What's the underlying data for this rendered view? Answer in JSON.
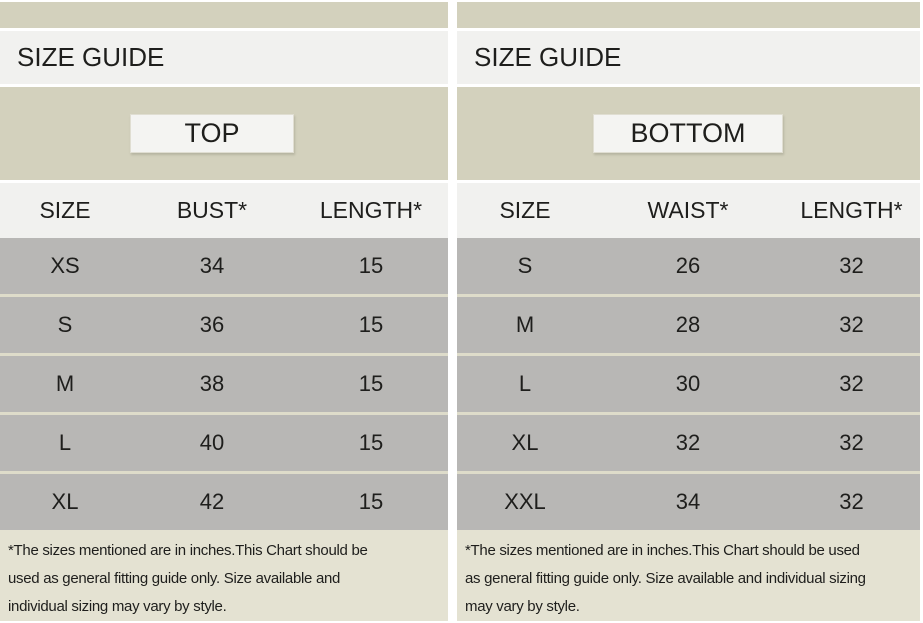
{
  "colors": {
    "accent_khaki": "#d3d1bd",
    "light_band": "#f1f1ef",
    "title_box_bg": "#f4f4f2",
    "data_row_gray": "#b8b7b5",
    "row_separator": "#dedcca",
    "footnote_bg": "#e4e2d2",
    "gap_white": "#ffffff",
    "text": "#1e1e1c"
  },
  "panels": [
    {
      "header_title": "SIZE GUIDE",
      "section_label": "TOP",
      "columns": [
        "SIZE",
        "BUST*",
        "LENGTH*"
      ],
      "rows": [
        [
          "XS",
          "34",
          "15"
        ],
        [
          "S",
          "36",
          "15"
        ],
        [
          "M",
          "38",
          "15"
        ],
        [
          "L",
          "40",
          "15"
        ],
        [
          "XL",
          "42",
          "15"
        ]
      ],
      "footnote_lines": [
        "*The sizes mentioned are in inches.This Chart should be",
        "used as general fitting guide only. Size available and",
        "individual sizing may vary by style."
      ]
    },
    {
      "header_title": "SIZE GUIDE",
      "section_label": "BOTTOM",
      "columns": [
        "SIZE",
        "WAIST*",
        "LENGTH*"
      ],
      "rows": [
        [
          "S",
          "26",
          "32"
        ],
        [
          "M",
          "28",
          "32"
        ],
        [
          "L",
          "30",
          "32"
        ],
        [
          "XL",
          "32",
          "32"
        ],
        [
          "XXL",
          "34",
          "32"
        ]
      ],
      "footnote_lines": [
        "*The sizes mentioned are in inches.This Chart should be used",
        "as general fitting guide only. Size available and individual sizing",
        "may vary by style."
      ]
    }
  ]
}
